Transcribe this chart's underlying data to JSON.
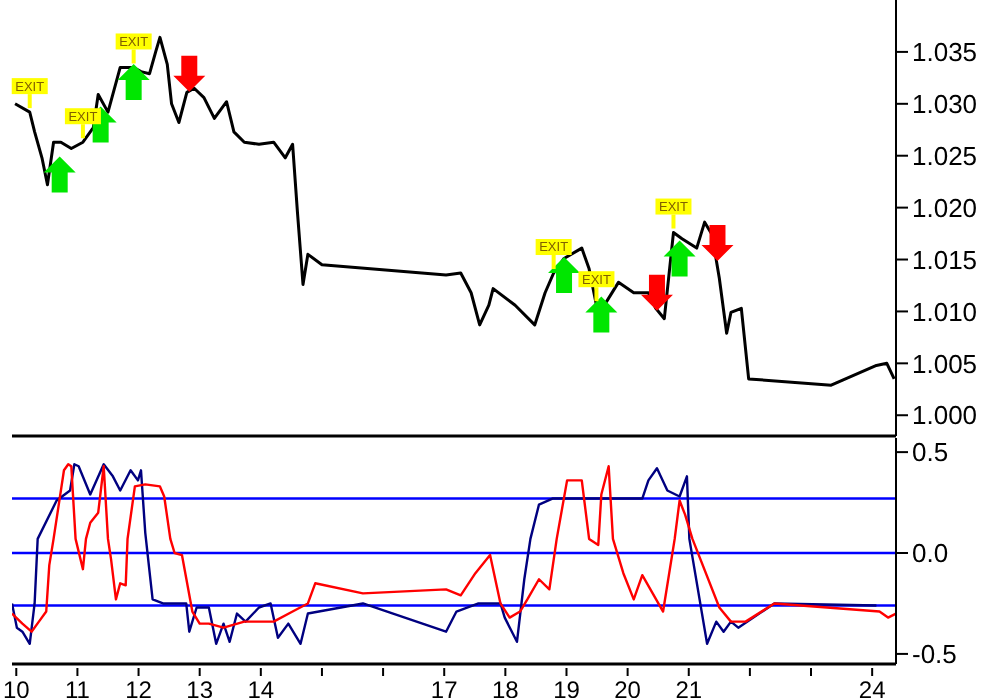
{
  "chart_data": [
    {
      "type": "line",
      "xlim": [
        9.93,
        24.39
      ],
      "ylim": [
        0.998,
        1.04
      ],
      "tick_labels": "y",
      "yticks": [
        {
          "value": 1.0,
          "label": "1.000"
        },
        {
          "value": 1.005,
          "label": "1.005"
        },
        {
          "value": 1.01,
          "label": "1.010"
        },
        {
          "value": 1.015,
          "label": "1.015"
        },
        {
          "value": 1.02,
          "label": "1.020"
        },
        {
          "value": 1.025,
          "label": "1.025"
        },
        {
          "value": 1.03,
          "label": "1.030"
        },
        {
          "value": 1.035,
          "label": "1.035"
        }
      ],
      "series": [
        {
          "type": "line",
          "color": "#000000",
          "x": [
            9.98,
            10.22,
            10.3,
            10.42,
            10.51,
            10.61,
            10.73,
            10.9,
            11.09,
            11.26,
            11.34,
            11.5,
            11.7,
            11.92,
            12.04,
            12.18,
            12.28,
            12.35,
            12.47,
            12.54,
            12.66,
            12.79,
            12.91,
            13.07,
            13.24,
            13.44,
            13.56,
            13.73,
            13.97,
            14.21,
            14.4,
            14.52,
            14.6,
            14.69,
            14.77,
            15.0,
            17.03,
            17.27,
            17.44,
            17.58,
            17.73,
            17.8,
            18.16,
            18.48,
            18.65,
            18.79,
            18.96,
            19.25,
            19.37,
            19.49,
            19.64,
            19.85,
            20.1,
            20.34,
            20.46,
            20.6,
            20.75,
            20.89,
            21.13,
            21.26,
            21.38,
            21.5,
            21.62,
            21.69,
            21.86,
            21.98,
            23.33,
            24.07,
            24.24,
            24.36
          ],
          "values": [
            1.03,
            1.0292,
            1.0273,
            1.0248,
            1.0222,
            1.0263,
            1.0263,
            1.0257,
            1.0263,
            1.0277,
            1.0309,
            1.0292,
            1.0335,
            1.0335,
            1.0331,
            1.0329,
            1.035,
            1.0364,
            1.0338,
            1.03,
            1.0282,
            1.0311,
            1.0315,
            1.0306,
            1.0286,
            1.0302,
            1.0273,
            1.0263,
            1.0261,
            1.0263,
            1.0248,
            1.0261,
            1.0195,
            1.0126,
            1.0155,
            1.0145,
            1.0135,
            1.0137,
            1.0118,
            1.0087,
            1.0106,
            1.0122,
            1.0106,
            1.0087,
            1.0118,
            1.0137,
            1.0151,
            1.0161,
            1.0141,
            1.0106,
            1.0108,
            1.0128,
            1.0118,
            1.0118,
            1.0103,
            1.0093,
            1.0176,
            1.017,
            1.0161,
            1.0186,
            1.0174,
            1.0132,
            1.0079,
            1.0099,
            1.0103,
            1.0035,
            1.0029,
            1.0048,
            1.005,
            1.0035
          ]
        },
        {
          "type": "scatter",
          "color": "#00e600",
          "x": [
            10.71,
            11.38,
            11.92,
            18.96,
            19.57,
            20.85
          ],
          "values": [
            1.0232,
            1.028,
            1.0321,
            1.0135,
            1.0097,
            1.0151
          ]
        },
        {
          "type": "scatter",
          "color": "#ff0000",
          "x": [
            12.83,
            20.48,
            21.47
          ],
          "values": [
            1.0329,
            1.0118,
            1.0166
          ]
        }
      ],
      "annotations": [
        {
          "text": "EXIT",
          "x": 10.22,
          "y": 1.0292
        },
        {
          "text": "EXIT",
          "x": 11.09,
          "y": 1.0263
        },
        {
          "text": "EXIT",
          "x": 11.92,
          "y": 1.0335
        },
        {
          "text": "EXIT",
          "x": 18.79,
          "y": 1.0137
        },
        {
          "text": "EXIT",
          "x": 19.49,
          "y": 1.0106
        },
        {
          "text": "EXIT",
          "x": 20.75,
          "y": 1.0176
        }
      ]
    },
    {
      "type": "line",
      "xlim": [
        9.93,
        24.39
      ],
      "ylim": [
        -0.55,
        0.57
      ],
      "yticks": [
        {
          "value": 0.5,
          "label": "0.5"
        },
        {
          "value": 0,
          "label": "0.0"
        },
        {
          "value": -0.5,
          "label": "-0.5"
        }
      ],
      "xticks": [
        10,
        11,
        12,
        13,
        14,
        {
          "value": 15,
          "label": null
        },
        {
          "value": 16,
          "label": null
        },
        17,
        18,
        19,
        20,
        21,
        {
          "value": 22,
          "label": null
        },
        {
          "value": 23,
          "label": null
        },
        24
      ],
      "ref_lines": [
        {
          "axis": "y",
          "value": 0.27,
          "color": "#0000ff"
        },
        {
          "axis": "y",
          "value": 0,
          "color": "#0000ff"
        },
        {
          "axis": "y",
          "value": -0.26,
          "color": "#0000ff"
        }
      ],
      "series": [
        {
          "type": "line",
          "color": "#000080",
          "x": [
            9.93,
            10.01,
            10.1,
            10.22,
            10.3,
            10.35,
            10.66,
            10.88,
            10.95,
            11.02,
            11.21,
            11.43,
            11.58,
            11.7,
            11.87,
            11.99,
            12.04,
            12.11,
            12.23,
            12.4,
            12.78,
            12.83,
            12.95,
            13.15,
            13.27,
            13.39,
            13.49,
            13.61,
            13.75,
            13.97,
            14.16,
            14.28,
            14.45,
            14.65,
            14.77,
            15.67,
            17.03,
            17.2,
            17.56,
            17.92,
            17.99,
            18.19,
            18.31,
            18.41,
            18.55,
            18.77,
            20.24,
            20.34,
            20.48,
            20.65,
            20.85,
            20.97,
            21.01,
            21.3,
            21.45,
            21.57,
            21.69,
            21.81,
            22.4,
            24.07
          ],
          "values": [
            -0.25,
            -0.37,
            -0.39,
            -0.45,
            -0.25,
            0.07,
            0.26,
            0.31,
            0.44,
            0.43,
            0.29,
            0.44,
            0.38,
            0.31,
            0.41,
            0.36,
            0.41,
            0.1,
            -0.23,
            -0.25,
            -0.25,
            -0.39,
            -0.27,
            -0.27,
            -0.45,
            -0.35,
            -0.44,
            -0.3,
            -0.34,
            -0.27,
            -0.25,
            -0.42,
            -0.35,
            -0.45,
            -0.3,
            -0.25,
            -0.39,
            -0.29,
            -0.25,
            -0.25,
            -0.32,
            -0.44,
            -0.13,
            0.07,
            0.24,
            0.27,
            0.27,
            0.36,
            0.42,
            0.31,
            0.28,
            0.38,
            0.07,
            -0.45,
            -0.34,
            -0.39,
            -0.34,
            -0.37,
            -0.25,
            -0.26
          ]
        },
        {
          "type": "line",
          "color": "#ff0000",
          "x": [
            9.93,
            10.1,
            10.25,
            10.37,
            10.49,
            10.54,
            10.61,
            10.78,
            10.85,
            10.9,
            10.97,
            11.09,
            11.14,
            11.21,
            11.34,
            11.43,
            11.5,
            11.55,
            11.63,
            11.7,
            11.79,
            11.82,
            11.94,
            12.11,
            12.35,
            12.42,
            12.52,
            12.59,
            12.71,
            12.88,
            13.0,
            13.15,
            13.39,
            13.73,
            13.97,
            14.21,
            14.52,
            14.77,
            14.89,
            15.67,
            17.03,
            17.27,
            17.51,
            17.75,
            17.92,
            18.07,
            18.24,
            18.36,
            18.55,
            18.72,
            18.84,
            19.01,
            19.25,
            19.37,
            19.52,
            19.57,
            19.69,
            19.76,
            19.93,
            20.1,
            20.24,
            20.41,
            20.58,
            20.77,
            20.85,
            20.94,
            21.06,
            21.5,
            21.69,
            21.93,
            22.4,
            24.12,
            24.26,
            24.39
          ],
          "values": [
            -0.3,
            -0.35,
            -0.39,
            -0.34,
            -0.29,
            -0.06,
            0.07,
            0.41,
            0.44,
            0.43,
            0.07,
            -0.08,
            0.07,
            0.15,
            0.2,
            0.43,
            0.07,
            -0.03,
            -0.23,
            -0.15,
            -0.16,
            0.07,
            0.33,
            0.34,
            0.33,
            0.28,
            0.07,
            0.0,
            -0.01,
            -0.29,
            -0.35,
            -0.35,
            -0.37,
            -0.34,
            -0.34,
            -0.34,
            -0.29,
            -0.25,
            -0.15,
            -0.2,
            -0.18,
            -0.21,
            -0.1,
            -0.01,
            -0.25,
            -0.32,
            -0.29,
            -0.23,
            -0.13,
            -0.18,
            0.07,
            0.36,
            0.36,
            0.07,
            0.04,
            0.29,
            0.43,
            0.07,
            -0.1,
            -0.23,
            -0.11,
            -0.2,
            -0.29,
            0.07,
            0.26,
            0.19,
            0.07,
            -0.27,
            -0.34,
            -0.34,
            -0.25,
            -0.29,
            -0.32,
            -0.3
          ]
        }
      ]
    }
  ]
}
